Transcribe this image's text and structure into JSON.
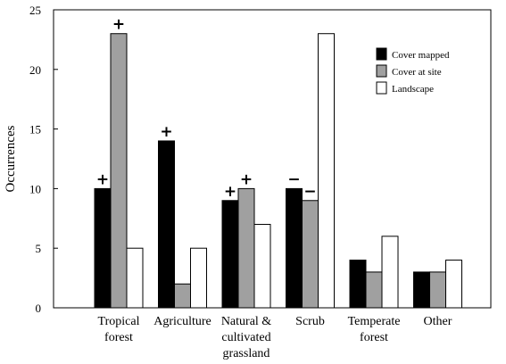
{
  "chart_data": {
    "type": "bar",
    "title": "",
    "xlabel": "",
    "ylabel": "Occurrences",
    "ylim": [
      0,
      25
    ],
    "yticks": [
      "0",
      "5",
      "10",
      "15",
      "20",
      "25"
    ],
    "categories": [
      [
        "Tropical",
        "forest"
      ],
      [
        "Agriculture"
      ],
      [
        "Natural &",
        "cultivated",
        "grassland"
      ],
      [
        "Scrub"
      ],
      [
        "Temperate",
        "forest"
      ],
      [
        "Other"
      ]
    ],
    "series": [
      {
        "name": "Cover mapped",
        "color": "#000000",
        "values": [
          10,
          14,
          9,
          10,
          4,
          3
        ]
      },
      {
        "name": "Cover at site",
        "color": "#a0a0a0",
        "values": [
          23,
          2,
          10,
          9,
          3,
          3
        ]
      },
      {
        "name": "Landscape",
        "color": "#ffffff",
        "values": [
          5,
          5,
          7,
          23,
          6,
          4
        ]
      }
    ],
    "annotations": [
      {
        "category": 0,
        "series": 0,
        "text": "+"
      },
      {
        "category": 0,
        "series": 1,
        "text": "+"
      },
      {
        "category": 1,
        "series": 0,
        "text": "+"
      },
      {
        "category": 2,
        "series": 0,
        "text": "+"
      },
      {
        "category": 2,
        "series": 1,
        "text": "+"
      },
      {
        "category": 3,
        "series": 0,
        "text": "−"
      },
      {
        "category": 3,
        "series": 1,
        "text": "−"
      }
    ],
    "legend_position": "top-right",
    "grid": false
  }
}
